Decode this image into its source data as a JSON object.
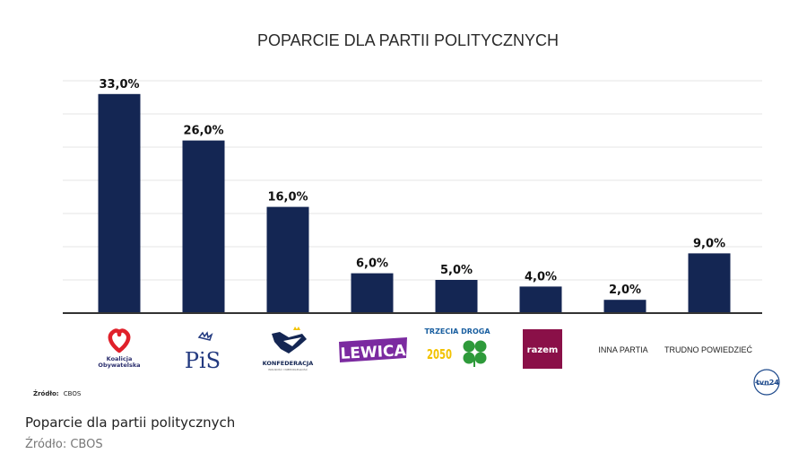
{
  "chart_data": {
    "type": "bar",
    "title": "POPARCIE DLA PARTII POLITYCZNYCH",
    "categories": [
      "Koalicja Obywatelska",
      "PiS",
      "KONFEDERACJA",
      "LEWICA",
      "TRZECIA DROGA",
      "razem",
      "INNA PARTIA",
      "TRUDNO POWIEDZIEĆ"
    ],
    "values": [
      33.0,
      26.0,
      16.0,
      6.0,
      5.0,
      4.0,
      2.0,
      9.0
    ],
    "value_labels": [
      "33,0%",
      "26,0%",
      "16,0%",
      "6,0%",
      "5,0%",
      "4,0%",
      "2,0%",
      "9,0%"
    ],
    "ylim": [
      0,
      35
    ],
    "grid": true,
    "bar_color": "#142653",
    "source_note_label": "Źródło:",
    "source_note_value": "CBOS"
  },
  "logos": {
    "ko_line1": "Koalicja",
    "ko_line2": "Obywatelska",
    "pis": "PiS",
    "konf": "KONFEDERACJA",
    "konf_sub": "WOLNOŚĆ I NIEPODLEGŁOŚĆ",
    "lewica": "LEWICA",
    "td": "TRZECIA DROGA",
    "td_2050": "2050",
    "razem": "razem",
    "inna": "INNA PARTIA",
    "trudno": "TRUDNO POWIEDZIEĆ",
    "tvn": "tvn24"
  },
  "caption": "Poparcie dla partii politycznych",
  "source": "Źródło: CBOS",
  "colors": {
    "ko": "#e0202a",
    "pis": "#233a80",
    "lewica": "#7b2aa0",
    "td_yellow": "#f2c200",
    "td_green": "#2e9a3a",
    "razem": "#8a1048",
    "tvn": "#1e4a8c"
  }
}
